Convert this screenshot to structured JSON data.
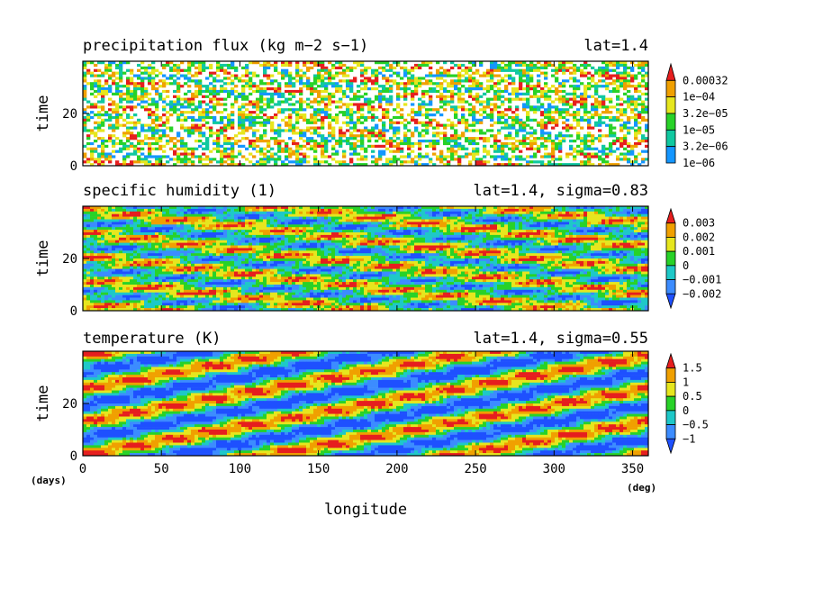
{
  "chart_data": [
    {
      "type": "heatmap",
      "title": "precipitation flux (kg m−2 s−1)",
      "subtitle": "lat=1.4",
      "ylabel": "time",
      "xlim": [
        0,
        360
      ],
      "ylim": [
        0,
        40
      ],
      "yticks": [
        0,
        20
      ],
      "colorbar": {
        "labels": [
          "0.00032",
          "1e−04",
          "3.2e−05",
          "1e−05",
          "3.2e−06",
          "1e−06"
        ],
        "colors": [
          "#1496ff",
          "#10c8a0",
          "#28d228",
          "#e6e61e",
          "#f0a000",
          "#e61e1e"
        ],
        "below_color": "#ffffff"
      }
    },
    {
      "type": "heatmap",
      "title": "specific humidity (1)",
      "subtitle": "lat=1.4, sigma=0.83",
      "ylabel": "time",
      "xlim": [
        0,
        360
      ],
      "ylim": [
        0,
        40
      ],
      "yticks": [
        0,
        20
      ],
      "colorbar": {
        "labels": [
          "0.003",
          "0.002",
          "0.001",
          "0",
          "−0.001",
          "−0.002"
        ],
        "colors": [
          "#1e50ff",
          "#3c8cff",
          "#1ec8c8",
          "#28d228",
          "#e6e61e",
          "#f0a000",
          "#e61e1e"
        ]
      }
    },
    {
      "type": "heatmap",
      "title": "temperature (K)",
      "subtitle": "lat=1.4, sigma=0.55",
      "ylabel": "time",
      "xlabel": "longitude",
      "x_unit": "(deg)",
      "y_unit": "(days)",
      "xlim": [
        0,
        360
      ],
      "ylim": [
        0,
        40
      ],
      "xticks": [
        0,
        50,
        100,
        150,
        200,
        250,
        300,
        350
      ],
      "yticks": [
        0,
        20
      ],
      "colorbar": {
        "labels": [
          "1.5",
          "1",
          "0.5",
          "0",
          "−0.5",
          "−1"
        ],
        "colors": [
          "#1e50ff",
          "#3c8cff",
          "#1ec8c8",
          "#28d228",
          "#e6e61e",
          "#f0a000",
          "#e61e1e"
        ]
      }
    }
  ]
}
